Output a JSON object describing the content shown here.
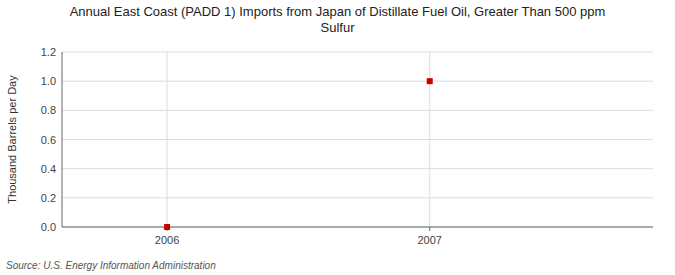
{
  "chart_data": {
    "type": "scatter",
    "title": "Annual East Coast (PADD 1) Imports from Japan of Distillate Fuel Oil, Greater Than 500 ppm\nSulfur",
    "y_label": "Thousand Barrels per Day",
    "source": "Source: U.S. Energy Information Administration",
    "x": [
      2006,
      2007
    ],
    "values": [
      0.0,
      1.0
    ],
    "color": "#cc0000",
    "marker": "square",
    "xlim": [
      2005.6,
      2007.85
    ],
    "xticks": [
      2006,
      2007
    ],
    "ylim": [
      0.0,
      1.2
    ],
    "yticks": [
      {
        "value": 0.0,
        "label": "0.0"
      },
      {
        "value": 0.2,
        "label": "0.2"
      },
      {
        "value": 0.4,
        "label": "0.4"
      },
      {
        "value": 0.6,
        "label": "0.6"
      },
      {
        "value": 0.8,
        "label": "0.8"
      },
      {
        "value": 1.0,
        "label": "1.0"
      },
      {
        "value": 1.2,
        "label": "1.2"
      }
    ],
    "grid": true
  }
}
